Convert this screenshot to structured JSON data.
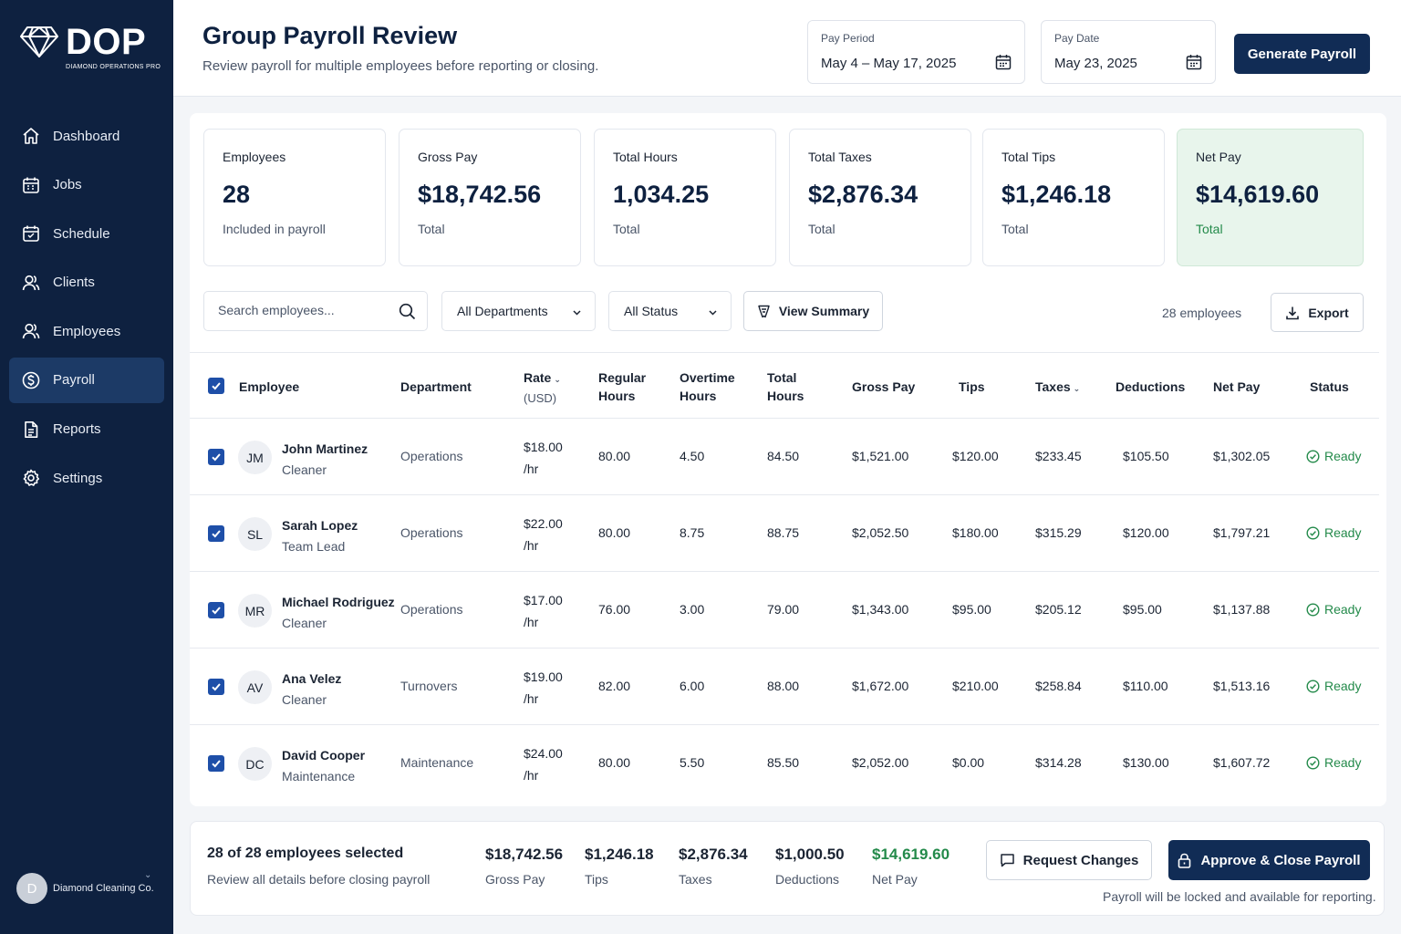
{
  "sidebar": {
    "brand": "DOP",
    "brand_sub": "DIAMOND OPERATIONS PRO",
    "items": [
      {
        "label": "Dashboard",
        "icon": "home-icon"
      },
      {
        "label": "Jobs",
        "icon": "calendar-icon"
      },
      {
        "label": "Schedule",
        "icon": "schedule-icon"
      },
      {
        "label": "Clients",
        "icon": "clients-icon"
      },
      {
        "label": "Employees",
        "icon": "employees-icon"
      },
      {
        "label": "Payroll",
        "icon": "dollar-icon",
        "active": true
      },
      {
        "label": "Reports",
        "icon": "report-icon"
      },
      {
        "label": "Settings",
        "icon": "gear-icon"
      }
    ],
    "account": {
      "initial": "D",
      "company": "Diamond Cleaning Co."
    }
  },
  "header": {
    "title": "Group Payroll Review",
    "subtitle": "Review payroll for multiple employees before reporting or closing.",
    "pay_period": {
      "label": "Pay Period",
      "value": "May 4 – May 17, 2025"
    },
    "pay_date": {
      "label": "Pay Date",
      "value": "May 23, 2025"
    },
    "generate_label": "Generate Payroll"
  },
  "stats": [
    {
      "label": "Employees",
      "value": "28",
      "note": "Included in payroll"
    },
    {
      "label": "Gross Pay",
      "value": "$18,742.56",
      "note": "Total"
    },
    {
      "label": "Total Hours",
      "value": "1,034.25",
      "note": "Total"
    },
    {
      "label": "Total Taxes",
      "value": "$2,876.34",
      "note": "Total"
    },
    {
      "label": "Total Tips",
      "value": "$1,246.18",
      "note": "Total"
    },
    {
      "label": "Net Pay",
      "value": "$14,619.60",
      "note": "Total"
    }
  ],
  "filters": {
    "search_placeholder": "Search employees...",
    "department": "All Departments",
    "status": "All Status",
    "view_summary": "View Summary",
    "count": "28 employees",
    "export": "Export"
  },
  "table": {
    "headers": {
      "employee": "Employee",
      "department": "Department",
      "rate": "Rate",
      "rate_unit": "(USD)",
      "regular_1": "Regular",
      "regular_2": "Hours",
      "overtime_1": "Overtime",
      "overtime_2": "Hours",
      "total_1": "Total",
      "total_2": "Hours",
      "gross": "Gross Pay",
      "tips": "Tips",
      "taxes": "Taxes",
      "deductions": "Deductions",
      "net": "Net Pay",
      "status": "Status"
    },
    "rows": [
      {
        "initials": "JM",
        "name": "John Martinez",
        "role": "Cleaner",
        "department": "Operations",
        "rate": "$18.00",
        "per": "/hr",
        "regular": "80.00",
        "overtime": "4.50",
        "total": "84.50",
        "gross": "$1,521.00",
        "tips": "$120.00",
        "taxes": "$233.45",
        "deductions": "$105.50",
        "net": "$1,302.05",
        "status": "Ready"
      },
      {
        "initials": "SL",
        "name": "Sarah Lopez",
        "role": "Team Lead",
        "department": "Operations",
        "rate": "$22.00",
        "per": "/hr",
        "regular": "80.00",
        "overtime": "8.75",
        "total": "88.75",
        "gross": "$2,052.50",
        "tips": "$180.00",
        "taxes": "$315.29",
        "deductions": "$120.00",
        "net": "$1,797.21",
        "status": "Ready"
      },
      {
        "initials": "MR",
        "name": "Michael Rodriguez",
        "role": "Cleaner",
        "department": "Operations",
        "rate": "$17.00",
        "per": "/hr",
        "regular": "76.00",
        "overtime": "3.00",
        "total": "79.00",
        "gross": "$1,343.00",
        "tips": "$95.00",
        "taxes": "$205.12",
        "deductions": "$95.00",
        "net": "$1,137.88",
        "status": "Ready"
      },
      {
        "initials": "AV",
        "name": "Ana Velez",
        "role": "Cleaner",
        "department": "Turnovers",
        "rate": "$19.00",
        "per": "/hr",
        "regular": "82.00",
        "overtime": "6.00",
        "total": "88.00",
        "gross": "$1,672.00",
        "tips": "$210.00",
        "taxes": "$258.84",
        "deductions": "$110.00",
        "net": "$1,513.16",
        "status": "Ready"
      },
      {
        "initials": "DC",
        "name": "David Cooper",
        "role": "Maintenance",
        "department": "Maintenance",
        "rate": "$24.00",
        "per": "/hr",
        "regular": "80.00",
        "overtime": "5.50",
        "total": "85.50",
        "gross": "$2,052.00",
        "tips": "$0.00",
        "taxes": "$314.28",
        "deductions": "$130.00",
        "net": "$1,607.72",
        "status": "Ready"
      }
    ]
  },
  "footer": {
    "selected": "28 of 28 employees selected",
    "hint": "Review all details before closing payroll",
    "totals": [
      {
        "value": "$18,742.56",
        "label": "Gross Pay"
      },
      {
        "value": "$1,246.18",
        "label": "Tips"
      },
      {
        "value": "$2,876.34",
        "label": "Taxes"
      },
      {
        "value": "$1,000.50",
        "label": "Deductions"
      },
      {
        "value": "$14,619.60",
        "label": "Net Pay"
      }
    ],
    "request_changes": "Request Changes",
    "approve": "Approve & Close Payroll",
    "note": "Payroll will be locked and available for reporting."
  },
  "colors": {
    "sidebar": "#0e2140",
    "primary": "#112c55",
    "accent_green": "#238a4a",
    "checkbox": "#1e4fa8"
  }
}
